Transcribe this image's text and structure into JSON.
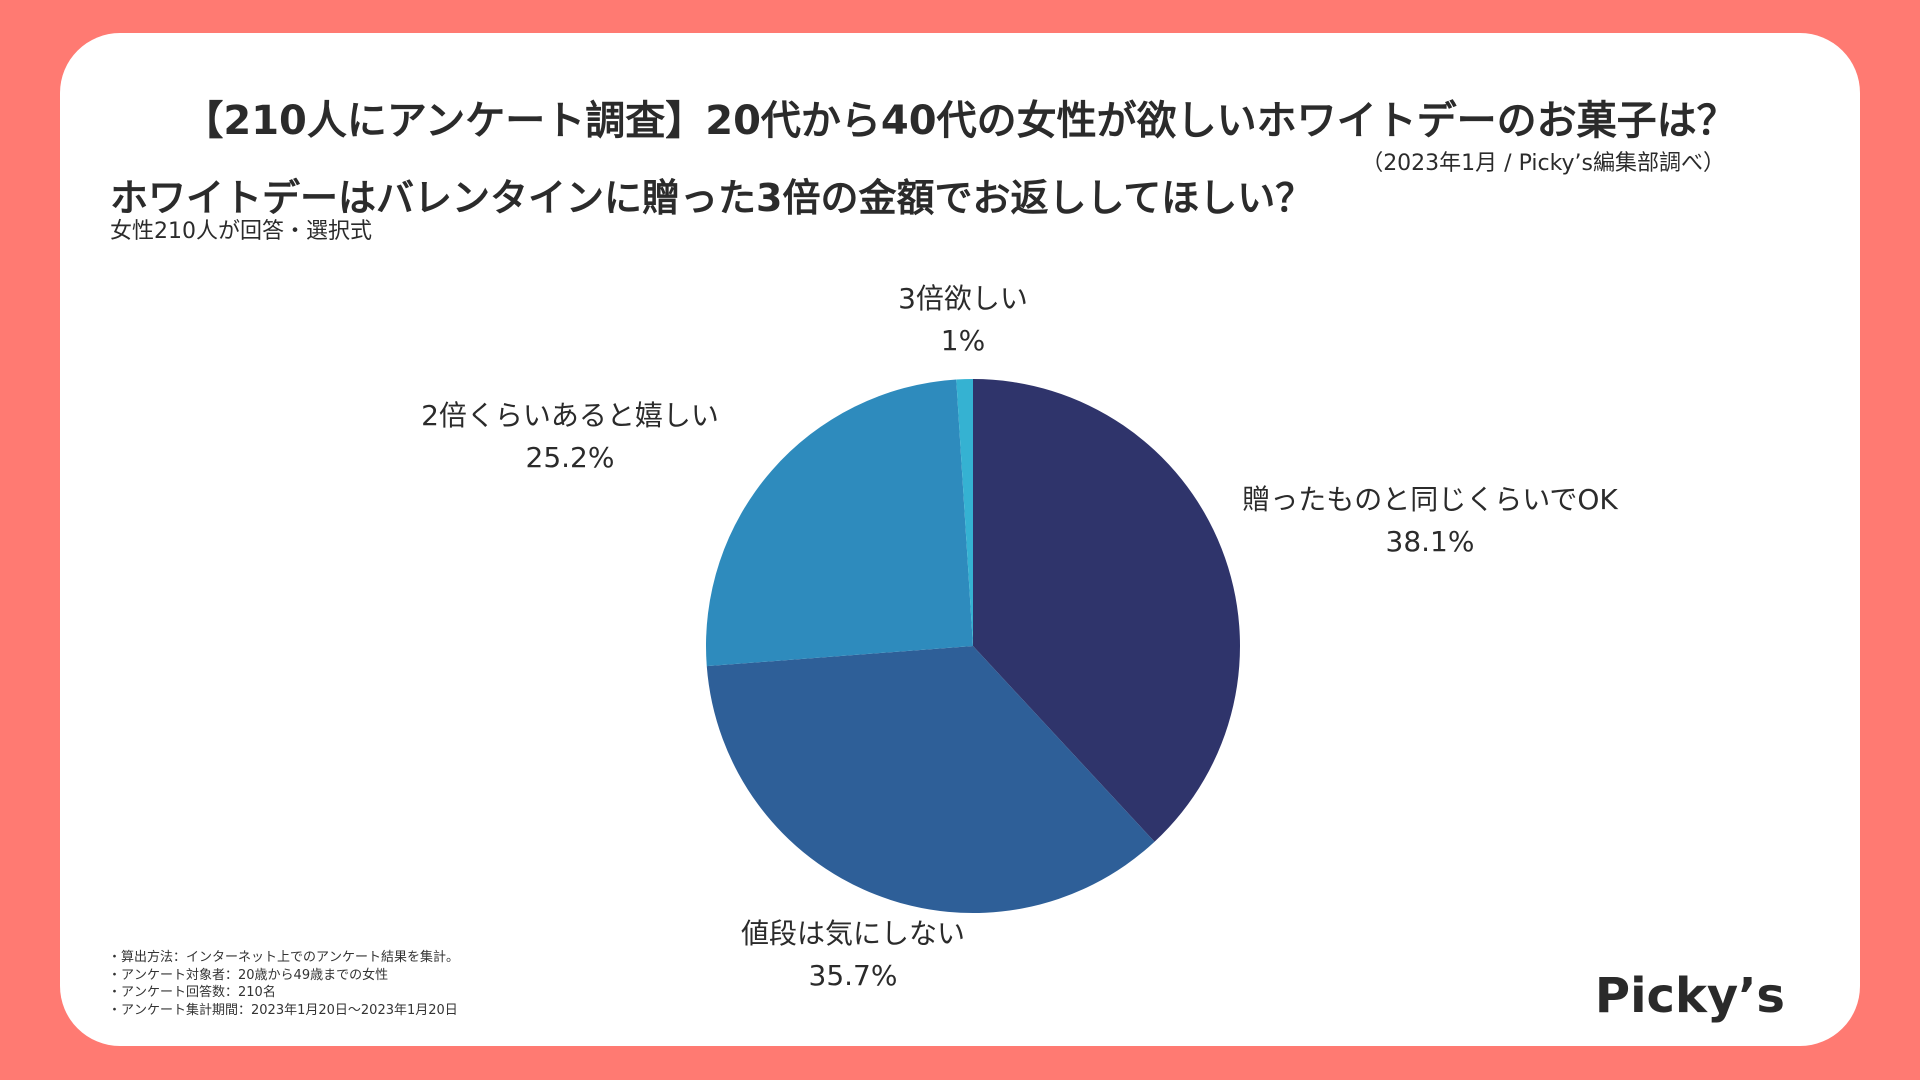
{
  "title": "【210人にアンケート調査】20代から40代の女性が欲しいホワイトデーのお菓子は？",
  "source_note": "（2023年1月 / Picky’s編集部調べ）",
  "question": "ホワイトデーはバレンタインに贈った3倍の金額でお返ししてほしい？",
  "respondents": "女性210人が回答・選択式",
  "colors": {
    "background": "#ff7a72",
    "card": "#ffffff"
  },
  "chart_data": {
    "type": "pie",
    "start_angle_deg": 0,
    "direction": "clockwise",
    "slices": [
      {
        "label": "贈ったものと同じくらいでOK",
        "value": 38.1,
        "value_label": "38.1%",
        "color": "#2f346b"
      },
      {
        "label": "値段は気にしない",
        "value": 35.7,
        "value_label": "35.7%",
        "color": "#2e5f98"
      },
      {
        "label": "2倍くらいあると嬉しい",
        "value": 25.2,
        "value_label": "25.2%",
        "color": "#2e8bbd"
      },
      {
        "label": "3倍欲しい",
        "value": 1,
        "value_label": "1%",
        "color": "#35b2d2"
      }
    ]
  },
  "footnotes": [
    "・算出方法：インターネット上でのアンケート結果を集計。",
    "・アンケート対象者：20歳から49歳までの女性",
    "・アンケート回答数：210名",
    "・アンケート集計期間：2023年1月20日〜2023年1月20日"
  ],
  "brand": "Picky’s"
}
